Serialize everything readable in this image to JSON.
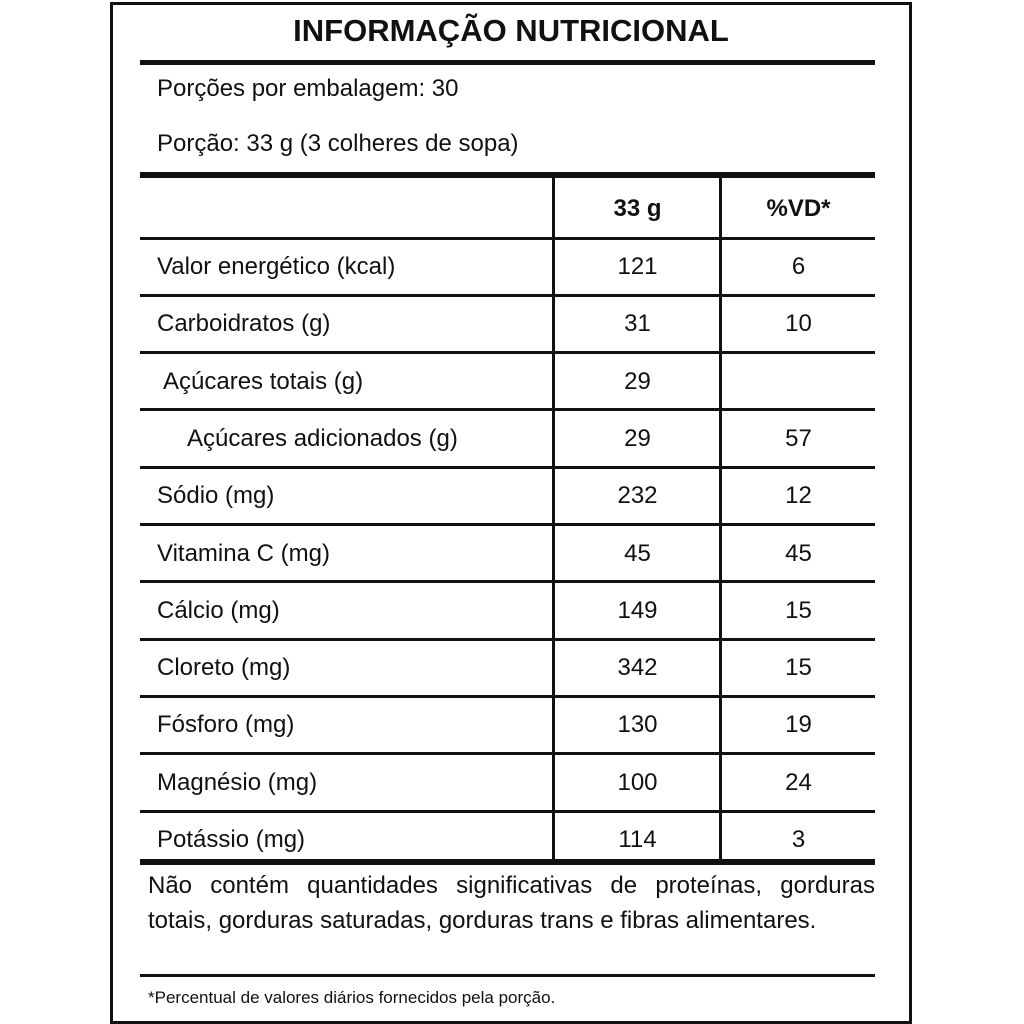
{
  "header": {
    "title": "INFORMAÇÃO NUTRICIONAL"
  },
  "serving": {
    "per_package": "Porções por embalagem: 30",
    "portion": "Porção: 33 g (3 colheres de sopa)"
  },
  "table": {
    "columns": [
      "33 g",
      "%VD*"
    ],
    "rows": [
      [
        "Valor energético (kcal)",
        "121",
        "6"
      ],
      [
        "Carboidratos (g)",
        "31",
        "10"
      ],
      [
        "Açúcares totais (g)",
        "29",
        null
      ],
      [
        "Açúcares adicionados (g)",
        "29",
        "57"
      ],
      [
        "Sódio (mg)",
        "232",
        "12"
      ],
      [
        "Vitamina C (mg)",
        "45",
        "45"
      ],
      [
        "Cálcio (mg)",
        "149",
        "15"
      ],
      [
        "Cloreto (mg)",
        "342",
        "15"
      ],
      [
        "Fósforo (mg)",
        "130",
        "19"
      ],
      [
        "Magnésio (mg)",
        "100",
        "24"
      ],
      [
        "Potássio (mg)",
        "114",
        "3"
      ]
    ]
  },
  "note": "Não contém quantidades significativas de proteínas, gorduras totais, gorduras saturadas, gorduras trans e fibras alimentares.",
  "footnote": "*Percentual de valores diários fornecidos pela porção."
}
